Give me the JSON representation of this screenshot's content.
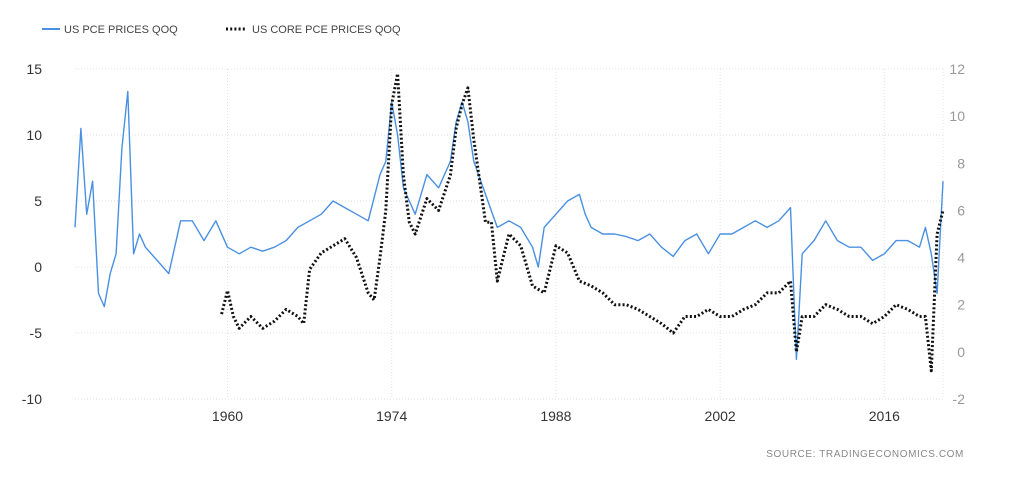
{
  "chart_data": {
    "type": "line",
    "legend_position": "top-left",
    "grid": true,
    "left_axis": {
      "ylim": [
        -10,
        15
      ],
      "ticks": [
        "15",
        "10",
        "5",
        "0",
        "-5",
        "-10"
      ]
    },
    "right_axis": {
      "ylim": [
        -2,
        12
      ],
      "ticks": [
        "12",
        "10",
        "8",
        "6",
        "4",
        "2",
        "0",
        "-2"
      ]
    },
    "xlim": [
      1947,
      2021
    ],
    "x_ticks": [
      "1960",
      "1974",
      "1988",
      "2002",
      "2016"
    ],
    "source": "SOURCE:  TRADINGECONOMICS.COM",
    "series": [
      {
        "name": "US PCE PRICES QOQ",
        "axis": "left",
        "color": "#4a90e2",
        "style": "solid",
        "x": [
          1947.0,
          1947.5,
          1948.0,
          1948.5,
          1949.0,
          1949.5,
          1950.0,
          1950.5,
          1951.0,
          1951.5,
          1952.0,
          1952.5,
          1953.0,
          1954.0,
          1955.0,
          1956.0,
          1957.0,
          1958.0,
          1959.0,
          1960.0,
          1961.0,
          1962.0,
          1963.0,
          1964.0,
          1965.0,
          1966.0,
          1967.0,
          1968.0,
          1969.0,
          1970.0,
          1971.0,
          1972.0,
          1973.0,
          1973.5,
          1974.0,
          1974.5,
          1975.0,
          1975.5,
          1976.0,
          1977.0,
          1978.0,
          1979.0,
          1979.5,
          1980.0,
          1980.5,
          1981.0,
          1982.0,
          1983.0,
          1984.0,
          1985.0,
          1986.0,
          1986.5,
          1987.0,
          1988.0,
          1989.0,
          1990.0,
          1990.5,
          1991.0,
          1992.0,
          1993.0,
          1994.0,
          1995.0,
          1996.0,
          1997.0,
          1998.0,
          1999.0,
          2000.0,
          2001.0,
          2002.0,
          2003.0,
          2004.0,
          2005.0,
          2006.0,
          2007.0,
          2008.0,
          2008.5,
          2009.0,
          2010.0,
          2011.0,
          2012.0,
          2013.0,
          2014.0,
          2015.0,
          2016.0,
          2017.0,
          2018.0,
          2019.0,
          2019.5,
          2020.0,
          2020.5,
          2021.0
        ],
        "y": [
          3,
          10.5,
          4,
          6.5,
          -2,
          -3,
          -0.5,
          1,
          9,
          13.3,
          1,
          2.5,
          1.5,
          0.5,
          -0.5,
          3.5,
          3.5,
          2,
          3.5,
          1.5,
          1,
          1.5,
          1.2,
          1.5,
          2,
          3,
          3.5,
          4,
          5,
          4.5,
          4,
          3.5,
          7,
          8,
          12.5,
          10,
          6,
          5,
          4,
          7,
          6,
          8,
          11,
          12.5,
          11,
          8,
          5.5,
          3,
          3.5,
          3,
          1.5,
          0,
          3,
          4,
          5,
          5.5,
          4,
          3,
          2.5,
          2.5,
          2.3,
          2,
          2.5,
          1.5,
          0.8,
          2,
          2.5,
          1,
          2.5,
          2.5,
          3,
          3.5,
          3,
          3.5,
          4.5,
          -7,
          1,
          2,
          3.5,
          2,
          1.5,
          1.5,
          0.5,
          1,
          2,
          2,
          1.5,
          3,
          1,
          -2,
          6.5
        ]
      },
      {
        "name": "US CORE PCE PRICES QOQ",
        "axis": "right",
        "color": "#111111",
        "style": "dotted",
        "x": [
          1959.5,
          1960.0,
          1960.5,
          1961.0,
          1962.0,
          1963.0,
          1964.0,
          1965.0,
          1966.0,
          1966.5,
          1967.0,
          1968.0,
          1969.0,
          1970.0,
          1971.0,
          1972.0,
          1972.5,
          1973.0,
          1973.5,
          1974.0,
          1974.5,
          1975.0,
          1975.5,
          1976.0,
          1977.0,
          1978.0,
          1979.0,
          1979.5,
          1980.0,
          1980.5,
          1981.0,
          1982.0,
          1982.5,
          1983.0,
          1984.0,
          1985.0,
          1986.0,
          1987.0,
          1988.0,
          1989.0,
          1990.0,
          1991.0,
          1992.0,
          1993.0,
          1994.0,
          1995.0,
          1996.0,
          1997.0,
          1998.0,
          1999.0,
          2000.0,
          2001.0,
          2002.0,
          2003.0,
          2004.0,
          2005.0,
          2006.0,
          2007.0,
          2008.0,
          2008.5,
          2009.0,
          2010.0,
          2011.0,
          2012.0,
          2013.0,
          2014.0,
          2015.0,
          2016.0,
          2017.0,
          2018.0,
          2019.0,
          2019.5,
          2020.0,
          2020.5,
          2021.0
        ],
        "y": [
          1.6,
          2.6,
          1.5,
          1,
          1.5,
          1,
          1.3,
          1.8,
          1.5,
          1.2,
          3.5,
          4.2,
          4.5,
          4.8,
          4,
          2.5,
          2.2,
          4,
          6,
          10.5,
          11.8,
          7.5,
          5.5,
          5,
          6.5,
          6,
          7.5,
          9.5,
          10.5,
          11.2,
          9,
          5.5,
          5.5,
          3,
          5,
          4.5,
          2.8,
          2.5,
          4.5,
          4.2,
          3,
          2.8,
          2.5,
          2,
          2,
          1.8,
          1.5,
          1.2,
          0.8,
          1.5,
          1.5,
          1.8,
          1.5,
          1.5,
          1.8,
          2,
          2.5,
          2.5,
          3,
          0,
          1.5,
          1.5,
          2,
          1.8,
          1.5,
          1.5,
          1.2,
          1.5,
          2,
          1.8,
          1.5,
          1.5,
          -0.8,
          5,
          6
        ]
      }
    ]
  }
}
